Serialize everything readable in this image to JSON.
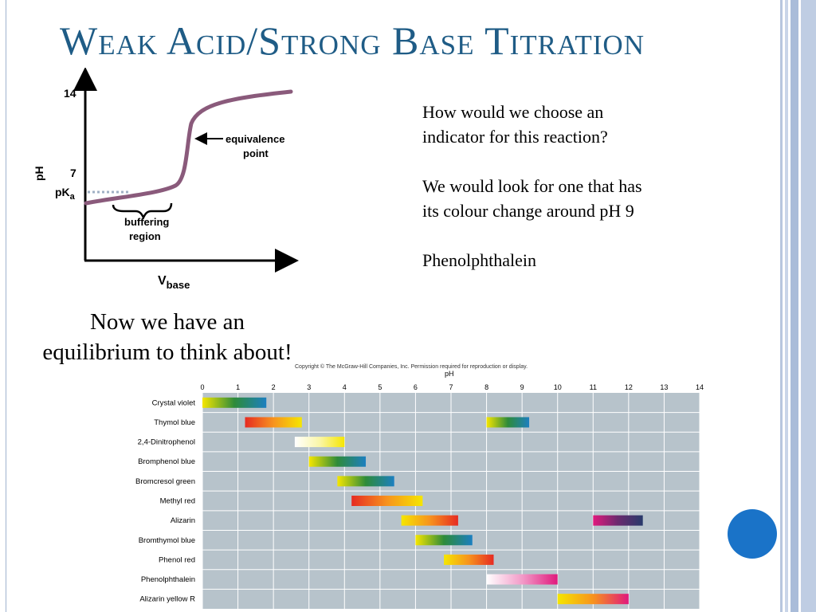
{
  "slide": {
    "title": "Weak Acid/Strong Base Titration",
    "question_line1": "How would we choose an",
    "question_line2": "indicator for this reaction?",
    "answer_line1": "We would look for one that has",
    "answer_line2": "its colour change around pH 9",
    "indicator_answer": "Phenolphthalein",
    "equilibrium_line1": "Now we have an",
    "equilibrium_line2": "equilibrium to think about!"
  },
  "colors": {
    "title": "#1f5c86",
    "curve": "#8a5a7b",
    "accent_dot": "#1a73c8",
    "chart_bg": "#b7c3cb"
  },
  "chart_data": [
    {
      "type": "line",
      "ylabel": "pH",
      "xlabel": "V",
      "xlabel_sub": "base",
      "y_ticks": [
        "14",
        "7"
      ],
      "pka_label": "pK",
      "pka_sub": "a",
      "annotations": {
        "equivalence_line1": "equivalence",
        "equivalence_line2": "point",
        "buffer_line1": "buffering",
        "buffer_line2": "region"
      }
    },
    {
      "type": "bar",
      "copyright": "Copyright © The McGraw-Hill Companies, Inc. Permission required for reproduction or display.",
      "xlabel": "pH",
      "xlim": [
        0,
        14
      ],
      "ticks": [
        "0",
        "1",
        "2",
        "3",
        "4",
        "5",
        "6",
        "7",
        "8",
        "9",
        "10",
        "11",
        "12",
        "13",
        "14"
      ],
      "indicators": [
        {
          "name": "Crystal violet",
          "ranges": [
            {
              "from": 0.0,
              "to": 1.8,
              "colors": [
                "#f5e600",
                "#2e8b3a",
                "#1c7fc0"
              ]
            }
          ]
        },
        {
          "name": "Thymol blue",
          "ranges": [
            {
              "from": 1.2,
              "to": 2.8,
              "colors": [
                "#e62b22",
                "#f7931e",
                "#f5e600"
              ]
            },
            {
              "from": 8.0,
              "to": 9.2,
              "colors": [
                "#f5e600",
                "#2e8b3a",
                "#1c7fc0"
              ]
            }
          ]
        },
        {
          "name": "2,4-Dinitrophenol",
          "ranges": [
            {
              "from": 2.6,
              "to": 4.0,
              "colors": [
                "#ffffff",
                "#faf6a8",
                "#f5e600"
              ]
            }
          ]
        },
        {
          "name": "Bromphenol blue",
          "ranges": [
            {
              "from": 3.0,
              "to": 4.6,
              "colors": [
                "#f5e600",
                "#2e8b3a",
                "#1c7fc0"
              ]
            }
          ]
        },
        {
          "name": "Bromcresol green",
          "ranges": [
            {
              "from": 3.8,
              "to": 5.4,
              "colors": [
                "#f5e600",
                "#2e8b3a",
                "#1c7fc0"
              ]
            }
          ]
        },
        {
          "name": "Methyl red",
          "ranges": [
            {
              "from": 4.2,
              "to": 6.2,
              "colors": [
                "#e62b22",
                "#f7931e",
                "#f5e600"
              ]
            }
          ]
        },
        {
          "name": "Alizarin",
          "ranges": [
            {
              "from": 5.6,
              "to": 7.2,
              "colors": [
                "#f5e600",
                "#f7931e",
                "#e62b22"
              ]
            },
            {
              "from": 11.0,
              "to": 12.4,
              "colors": [
                "#e0197d",
                "#6a2a6e",
                "#283a6b"
              ]
            }
          ]
        },
        {
          "name": "Bromthymol blue",
          "ranges": [
            {
              "from": 6.0,
              "to": 7.6,
              "colors": [
                "#f5e600",
                "#2e8b3a",
                "#1c7fc0"
              ]
            }
          ]
        },
        {
          "name": "Phenol red",
          "ranges": [
            {
              "from": 6.8,
              "to": 8.2,
              "colors": [
                "#f5e600",
                "#f7931e",
                "#e62b22"
              ]
            }
          ]
        },
        {
          "name": "Phenolphthalein",
          "ranges": [
            {
              "from": 8.0,
              "to": 10.0,
              "colors": [
                "#ffffff",
                "#f29bc8",
                "#e0197d"
              ]
            }
          ]
        },
        {
          "name": "Alizarin yellow R",
          "ranges": [
            {
              "from": 10.0,
              "to": 12.0,
              "colors": [
                "#f5e600",
                "#f7931e",
                "#e0197d"
              ]
            }
          ]
        }
      ]
    }
  ]
}
